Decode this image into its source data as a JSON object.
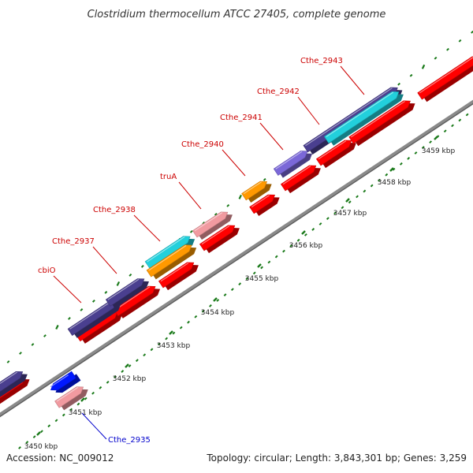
{
  "title": "Clostridium thermocellum ATCC 27405, complete genome",
  "footer": {
    "accession": "Accession: NC_009012",
    "summary": "Topology: circular; Length: 3,843,301 bp; Genes: 3,259"
  },
  "colors": {
    "backbone": "#8a8a8a",
    "backbone_shadow": "#555555",
    "tick": "#1a7a1a",
    "label_red": "#cc0000",
    "label_blue": "#0000cc",
    "cds_red": "#ff0000",
    "cds_pink": "#f19aa0",
    "cds_darkblue": "#4a3f8f",
    "cds_purple": "#7b68d8",
    "cds_cyan": "#22d0dc",
    "cds_orange": "#ff9900",
    "cds_blue": "#0018ff"
  },
  "ticks": [
    "3450 kbp",
    "3451 kbp",
    "3452 kbp",
    "3453 kbp",
    "3454 kbp",
    "3455 kbp",
    "3456 kbp",
    "3457 kbp",
    "3458 kbp",
    "3459 kbp"
  ],
  "gene_labels": [
    {
      "name": "cbiO",
      "color": "red"
    },
    {
      "name": "Cthe_2937",
      "color": "red"
    },
    {
      "name": "Cthe_2938",
      "color": "red"
    },
    {
      "name": "truA",
      "color": "red"
    },
    {
      "name": "Cthe_2940",
      "color": "red"
    },
    {
      "name": "Cthe_2941",
      "color": "red"
    },
    {
      "name": "Cthe_2942",
      "color": "red"
    },
    {
      "name": "Cthe_2943",
      "color": "red"
    },
    {
      "name": "Cthe_2935",
      "color": "blue"
    }
  ]
}
